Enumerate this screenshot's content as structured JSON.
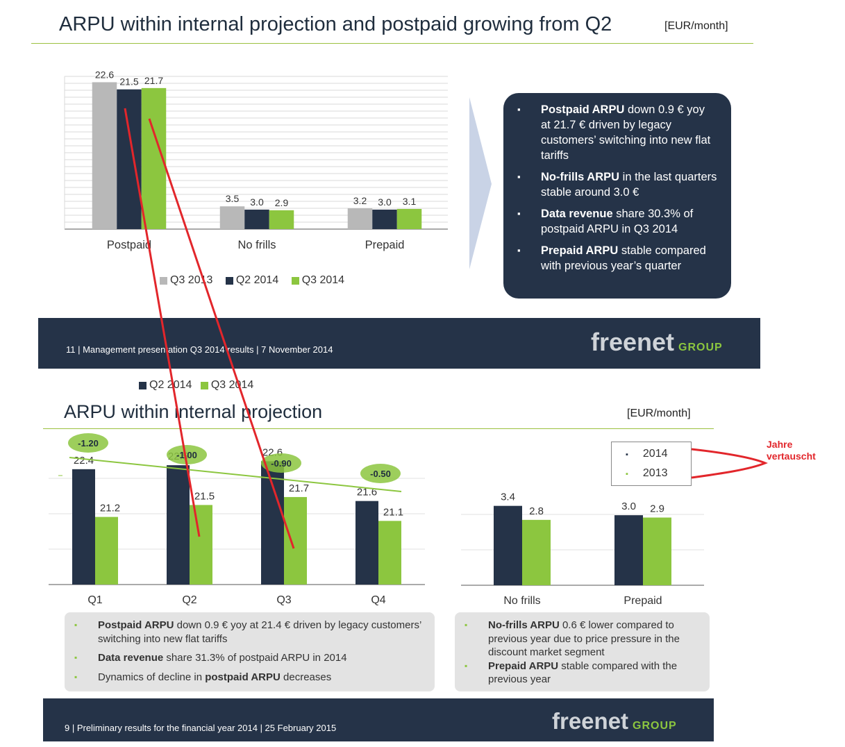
{
  "colors": {
    "q3_2013": "#b8b8b8",
    "navy": "#253348",
    "green": "#8cc63f",
    "annotation_red": "#e2262b"
  },
  "top_slide": {
    "title": "ARPU within internal projection and postpaid growing from Q2",
    "unit": "[EUR/month]",
    "bullets": [
      {
        "bold": "Postpaid ARPU",
        "text": " down 0.9 € yoy at 21.7 € driven by legacy customers’ switching into new flat tariffs"
      },
      {
        "bold": "No-frills ARPU",
        "text": " in the last quarters stable around 3.0 €"
      },
      {
        "bold": "Data revenue",
        "text": " share 30.3% of postpaid ARPU in Q3 2014"
      },
      {
        "bold": "Prepaid ARPU",
        "text": " stable compared with previous year’s quarter"
      }
    ],
    "footer": "11  |  Management presentation Q3 2014 results |  7 November 2014"
  },
  "logo": {
    "main": "freenet",
    "group": "GROUP"
  },
  "bottom_slide": {
    "title": "ARPU within internal projection",
    "unit": "[EUR/month]",
    "left_bullets": [
      {
        "bold": "Postpaid ARPU",
        "pre": "",
        "text": " down 0.9 € yoy at 21.4 € driven by legacy customers’ switching into new flat tariffs"
      },
      {
        "bold": "Data revenue",
        "pre": "",
        "text": " share 31.3% of postpaid ARPU in 2014"
      },
      {
        "bold": "postpaid ARPU",
        "pre": "Dynamics of decline in ",
        "text": " decreases"
      }
    ],
    "right_bullets": [
      {
        "bold": "No-frills ARPU",
        "text": " 0.6 € lower compared to previous year due to price pressure in the discount market segment"
      },
      {
        "bold": "Prepaid ARPU",
        "text": " stable compared with the previous year"
      }
    ],
    "footer": "9  |  Preliminary results for the financial year 2014 |  25 February 2015"
  },
  "annotation": {
    "text_line1": "Jahre",
    "text_line2": "vertauscht"
  },
  "chart_data": [
    {
      "type": "bar",
      "categories": [
        "Postpaid",
        "No frills",
        "Prepaid"
      ],
      "series": [
        {
          "name": "Q3 2013",
          "values": [
            22.6,
            3.5,
            3.2
          ],
          "labels": [
            "22.6",
            "3.5",
            "3.2"
          ]
        },
        {
          "name": "Q2 2014",
          "values": [
            21.5,
            3.0,
            3.0
          ],
          "labels": [
            "21.5",
            "3.0",
            "3.0"
          ]
        },
        {
          "name": "Q3 2014",
          "values": [
            21.7,
            2.9,
            3.1
          ],
          "labels": [
            "21.7",
            "2.9",
            "3.1"
          ]
        }
      ],
      "ylim": [
        0,
        23.5
      ],
      "grid": true,
      "legend": "bottom"
    },
    {
      "type": "bar",
      "categories": [
        "Q1",
        "Q2",
        "Q3",
        "Q4"
      ],
      "series": [
        {
          "name": "2014",
          "values": [
            22.4,
            22.5,
            22.6,
            21.6
          ],
          "labels": [
            "22.4",
            "22.5",
            "22.6",
            "21.6"
          ]
        },
        {
          "name": "2013",
          "values": [
            21.2,
            21.5,
            21.7,
            21.1
          ],
          "labels": [
            "21.2",
            "21.5",
            "21.7",
            "21.1"
          ]
        }
      ],
      "differences": [
        -1.2,
        -1.0,
        -0.9,
        -0.5
      ],
      "difference_labels": [
        "-1.20",
        "-1.00",
        "-0.90",
        "-0.50"
      ],
      "ylim": [
        19.5,
        23.2
      ],
      "grid": true,
      "legend": "top-left"
    },
    {
      "type": "bar",
      "categories": [
        "No frills",
        "Prepaid"
      ],
      "series": [
        {
          "name": "2014",
          "values": [
            3.4,
            3.0
          ],
          "labels": [
            "3.4",
            "3.0"
          ]
        },
        {
          "name": "2013",
          "values": [
            2.8,
            2.9
          ],
          "labels": [
            "2.8",
            "2.9"
          ]
        }
      ],
      "ylim": [
        0,
        4.55
      ],
      "grid": true,
      "legend": "top-right"
    }
  ]
}
